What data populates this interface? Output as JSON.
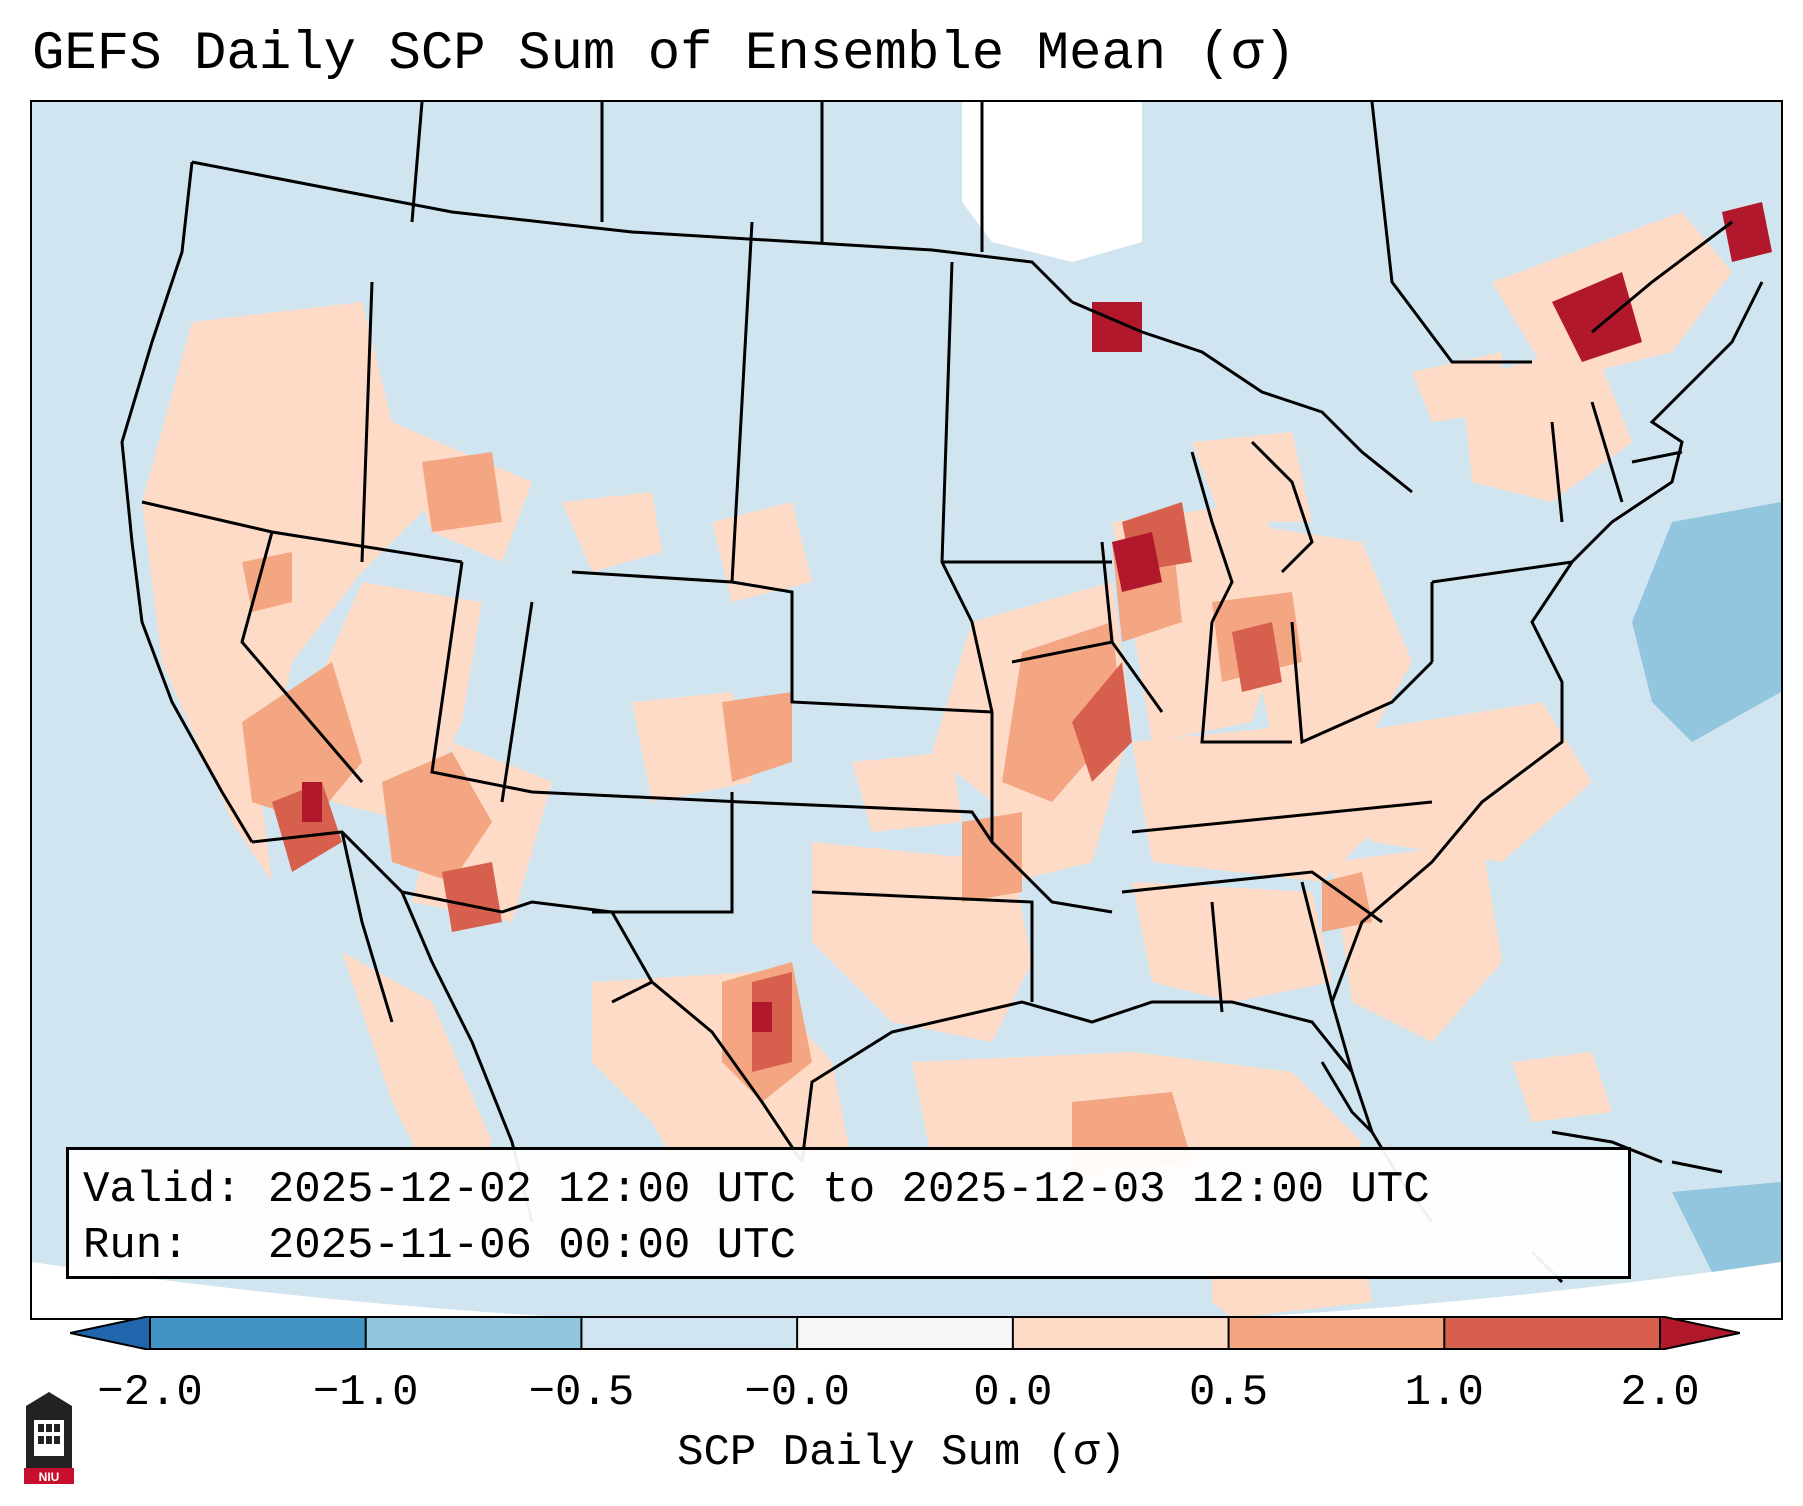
{
  "title": "GEFS Daily SCP Sum of Ensemble Mean (σ)",
  "info": {
    "valid_line": "Valid: 2025-12-02 12:00 UTC to 2025-12-03 12:00 UTC",
    "run_line": "Run:   2025-11-06 00:00 UTC"
  },
  "colorbar": {
    "label": "SCP Daily Sum (σ)",
    "ticks": [
      "−2.0",
      "−1.0",
      "−0.5",
      "−0.0",
      "0.0",
      "0.5",
      "1.0",
      "2.0"
    ],
    "colors": [
      "#4393c3",
      "#92c5de",
      "#d1e5f0",
      "#f7f7f7",
      "#fddbc7",
      "#f4a582",
      "#d6604d"
    ],
    "under_color": "#2166ac",
    "over_color": "#b2182b"
  },
  "logo_text": "NIU"
}
